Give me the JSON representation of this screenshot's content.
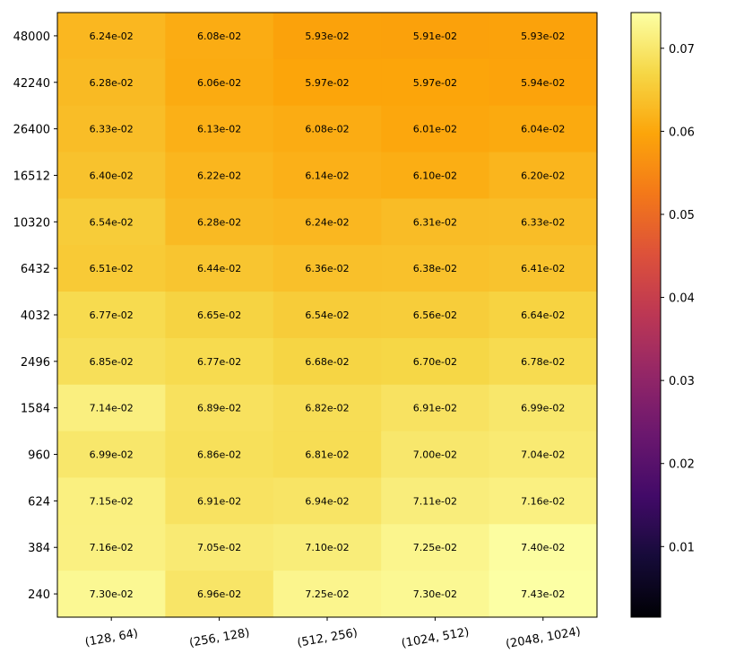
{
  "chart_data": {
    "type": "heatmap",
    "title": "",
    "xlabel": "",
    "ylabel": "",
    "x_categories": [
      "(128, 64)",
      "(256, 128)",
      "(512, 256)",
      "(1024, 512)",
      "(2048, 1024)"
    ],
    "y_categories": [
      "48000",
      "42240",
      "26400",
      "16512",
      "10320",
      "6432",
      "4032",
      "2496",
      "1584",
      "960",
      "624",
      "384",
      "240"
    ],
    "values": [
      [
        0.0624,
        0.0608,
        0.0593,
        0.0591,
        0.0593
      ],
      [
        0.0628,
        0.0606,
        0.0597,
        0.0597,
        0.0594
      ],
      [
        0.0633,
        0.0613,
        0.0608,
        0.0601,
        0.0604
      ],
      [
        0.064,
        0.0622,
        0.0614,
        0.061,
        0.062
      ],
      [
        0.0654,
        0.0628,
        0.0624,
        0.0631,
        0.0633
      ],
      [
        0.0651,
        0.0644,
        0.0636,
        0.0638,
        0.0641
      ],
      [
        0.0677,
        0.0665,
        0.0654,
        0.0656,
        0.0664
      ],
      [
        0.0685,
        0.0677,
        0.0668,
        0.067,
        0.0678
      ],
      [
        0.0714,
        0.0689,
        0.0682,
        0.0691,
        0.0699
      ],
      [
        0.0699,
        0.0686,
        0.0681,
        0.07,
        0.0704
      ],
      [
        0.0715,
        0.0691,
        0.0694,
        0.0711,
        0.0716
      ],
      [
        0.0716,
        0.0705,
        0.071,
        0.0725,
        0.074
      ],
      [
        0.073,
        0.0696,
        0.0725,
        0.073,
        0.0743
      ]
    ],
    "value_labels": [
      [
        "6.24e-02",
        "6.08e-02",
        "5.93e-02",
        "5.91e-02",
        "5.93e-02"
      ],
      [
        "6.28e-02",
        "6.06e-02",
        "5.97e-02",
        "5.97e-02",
        "5.94e-02"
      ],
      [
        "6.33e-02",
        "6.13e-02",
        "6.08e-02",
        "6.01e-02",
        "6.04e-02"
      ],
      [
        "6.40e-02",
        "6.22e-02",
        "6.14e-02",
        "6.10e-02",
        "6.20e-02"
      ],
      [
        "6.54e-02",
        "6.28e-02",
        "6.24e-02",
        "6.31e-02",
        "6.33e-02"
      ],
      [
        "6.51e-02",
        "6.44e-02",
        "6.36e-02",
        "6.38e-02",
        "6.41e-02"
      ],
      [
        "6.77e-02",
        "6.65e-02",
        "6.54e-02",
        "6.56e-02",
        "6.64e-02"
      ],
      [
        "6.85e-02",
        "6.77e-02",
        "6.68e-02",
        "6.70e-02",
        "6.78e-02"
      ],
      [
        "7.14e-02",
        "6.89e-02",
        "6.82e-02",
        "6.91e-02",
        "6.99e-02"
      ],
      [
        "6.99e-02",
        "6.86e-02",
        "6.81e-02",
        "7.00e-02",
        "7.04e-02"
      ],
      [
        "7.15e-02",
        "6.91e-02",
        "6.94e-02",
        "7.11e-02",
        "7.16e-02"
      ],
      [
        "7.16e-02",
        "7.05e-02",
        "7.10e-02",
        "7.25e-02",
        "7.40e-02"
      ],
      [
        "7.30e-02",
        "6.96e-02",
        "7.25e-02",
        "7.30e-02",
        "7.43e-02"
      ]
    ],
    "colormap": "inferno",
    "colorbar": {
      "range": [
        0.0015,
        0.0743
      ],
      "ticks": [
        0.01,
        0.02,
        0.03,
        0.04,
        0.05,
        0.06,
        0.07
      ],
      "tick_labels": [
        "0.01",
        "0.02",
        "0.03",
        "0.04",
        "0.05",
        "0.06",
        "0.07"
      ]
    },
    "x_tick_rotation_deg": 10,
    "grid": false,
    "legend": "colorbar-right"
  }
}
